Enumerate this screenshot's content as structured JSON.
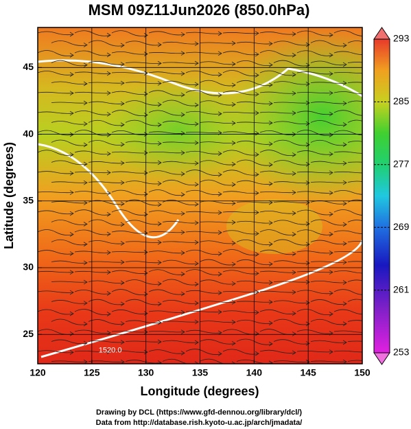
{
  "chart_data": {
    "type": "map",
    "title": "MSM 09Z11Jun2026 (850.0hPa)",
    "xlabel": "Longitude (degrees)",
    "ylabel": "Latitude  (degrees)",
    "xlim": [
      120,
      150
    ],
    "xticks": [
      120,
      125,
      130,
      135,
      140,
      145,
      150
    ],
    "ylim": [
      22.8,
      48
    ],
    "yticks": [
      25,
      30,
      35,
      40,
      45
    ],
    "grid": true,
    "colorbar": {
      "clim": [
        253,
        293
      ],
      "ticks": [
        293,
        285,
        277,
        269,
        261,
        253
      ]
    },
    "annotations": [
      {
        "text": "1520.0",
        "x": 126.7,
        "y": 23.8
      }
    ],
    "footer": [
      "Drawing by DCL (https://www.gfd-dennou.org/library/dcl/)",
      "Data from http://database.rish.kyoto-u.ac.jp/arch/jmadata/"
    ]
  }
}
